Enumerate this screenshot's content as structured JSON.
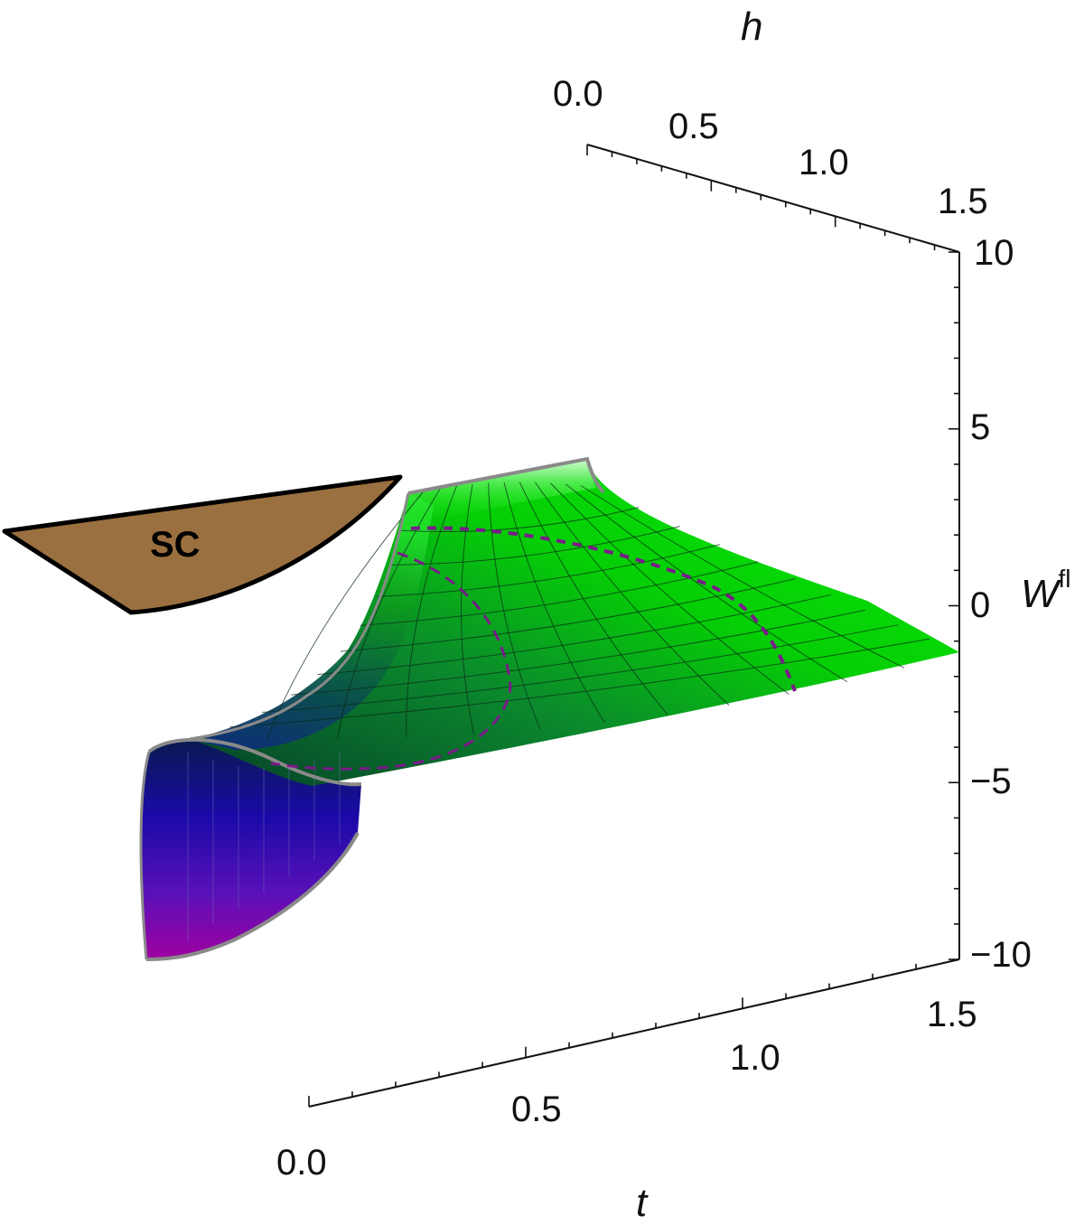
{
  "chart_data": {
    "type": "surface3d",
    "axes": {
      "t": {
        "title": "t",
        "range": [
          0,
          1.5
        ],
        "ticks": [
          "0.0",
          "0.5",
          "1.0",
          "1.5"
        ]
      },
      "h": {
        "title": "h",
        "range": [
          0,
          1.5
        ],
        "ticks": [
          "0.0",
          "0.5",
          "1.0",
          "1.5"
        ]
      },
      "W": {
        "title": "W",
        "superscript": "fl",
        "range": [
          -10,
          10
        ],
        "ticks": [
          "10",
          "5",
          "0",
          "−5",
          "−10"
        ]
      }
    },
    "region_label": "SC",
    "colors": {
      "surface_high": "#00e000",
      "surface_mid": "#0a5a3a",
      "surface_low": "#1a0aa0",
      "surface_min": "#9a00a8",
      "edge": "#8a8a8a",
      "dashed_contour": "#7a1a8a",
      "sc_region_fill": "#9b7040",
      "sc_region_stroke": "#000000"
    }
  }
}
